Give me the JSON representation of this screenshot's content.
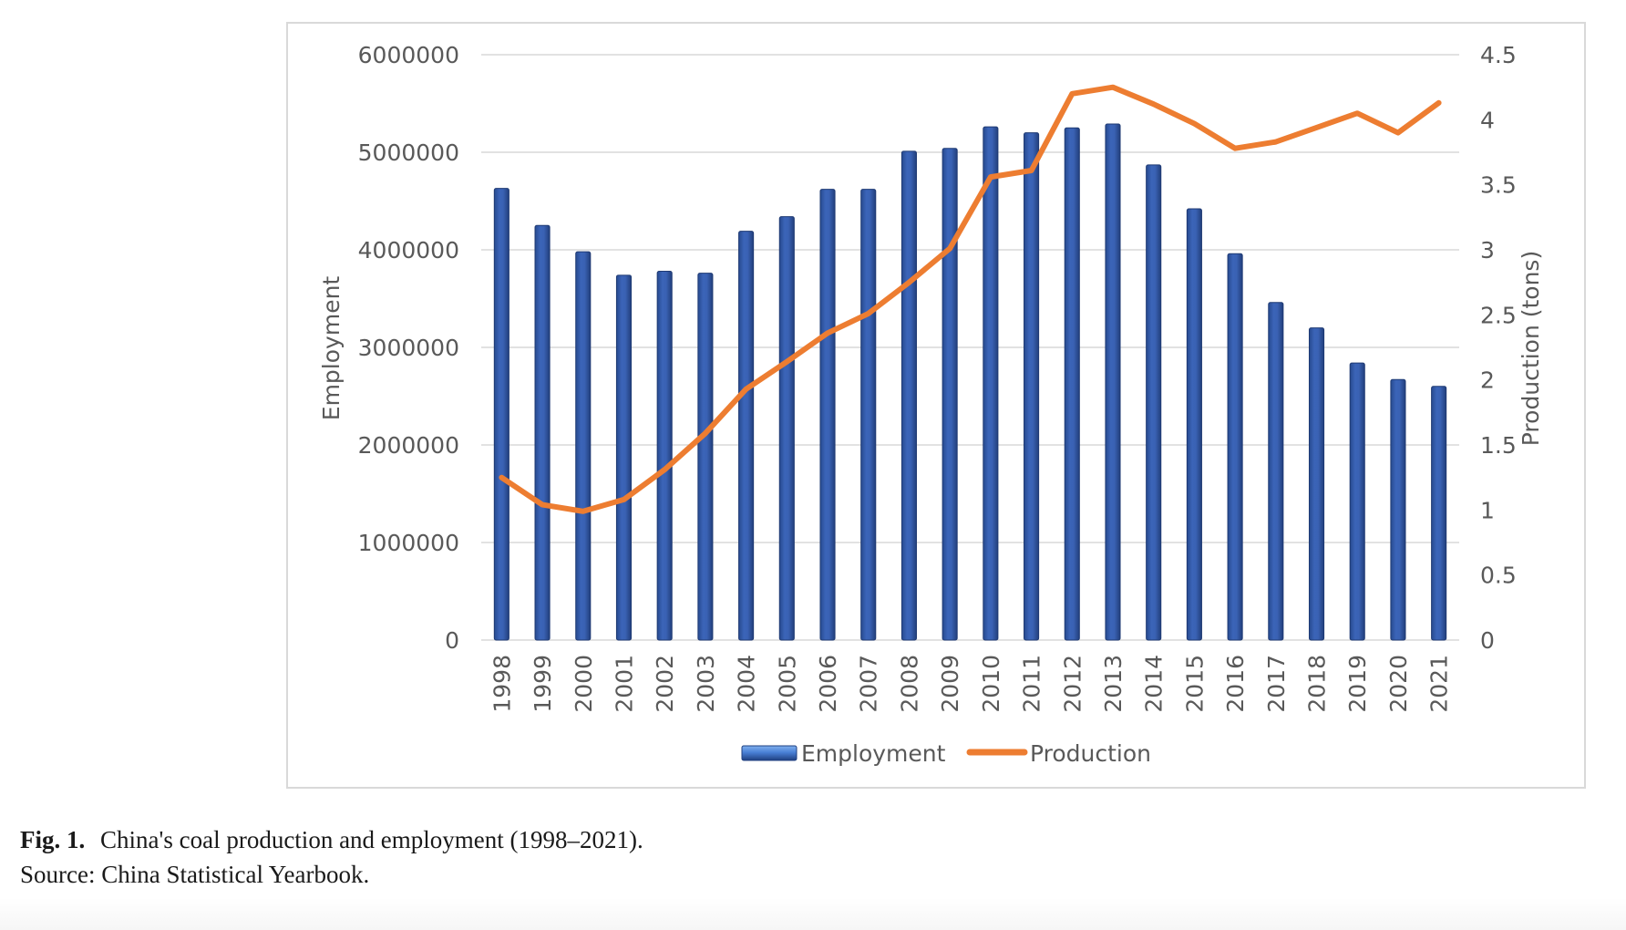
{
  "chart_data": {
    "type": "bar+line",
    "categories": [
      "1998",
      "1999",
      "2000",
      "2001",
      "2002",
      "2003",
      "2004",
      "2005",
      "2006",
      "2007",
      "2008",
      "2009",
      "2010",
      "2011",
      "2012",
      "2013",
      "2014",
      "2015",
      "2016",
      "2017",
      "2018",
      "2019",
      "2020",
      "2021"
    ],
    "series": [
      {
        "name": "Employment",
        "type": "bar",
        "axis": "left",
        "color": "#2f55a4",
        "values": [
          4630000,
          4250000,
          3980000,
          3740000,
          3780000,
          3760000,
          4190000,
          4340000,
          4620000,
          4620000,
          5010000,
          5040000,
          5260000,
          5200000,
          5250000,
          5290000,
          4870000,
          4420000,
          3960000,
          3460000,
          3200000,
          2840000,
          2670000,
          2600000
        ]
      },
      {
        "name": "Production",
        "type": "line",
        "axis": "right",
        "color": "#ed7d31",
        "values": [
          1.25,
          1.04,
          0.99,
          1.08,
          1.31,
          1.59,
          1.93,
          2.14,
          2.36,
          2.51,
          2.75,
          3.01,
          3.56,
          3.61,
          4.2,
          4.25,
          4.12,
          3.97,
          3.78,
          3.83,
          3.94,
          4.05,
          3.9,
          4.13
        ]
      }
    ],
    "ylabel": "Employment",
    "ylabel_right": "Production (tons)",
    "ylim": [
      0,
      6000000
    ],
    "yticks": [
      "0",
      "1000000",
      "2000000",
      "3000000",
      "4000000",
      "5000000",
      "6000000"
    ],
    "ylim_right": [
      0,
      4.5
    ],
    "yticks_right": [
      "0",
      "0.5",
      "1",
      "1.5",
      "2",
      "2.5",
      "3",
      "3.5",
      "4",
      "4.5"
    ],
    "grid": true,
    "legend_position": "bottom",
    "legend": [
      "Employment",
      "Production"
    ]
  },
  "caption": {
    "label": "Fig. 1.",
    "text": "China's coal production and employment (1998–2021).",
    "source": "Source: China Statistical Yearbook."
  }
}
